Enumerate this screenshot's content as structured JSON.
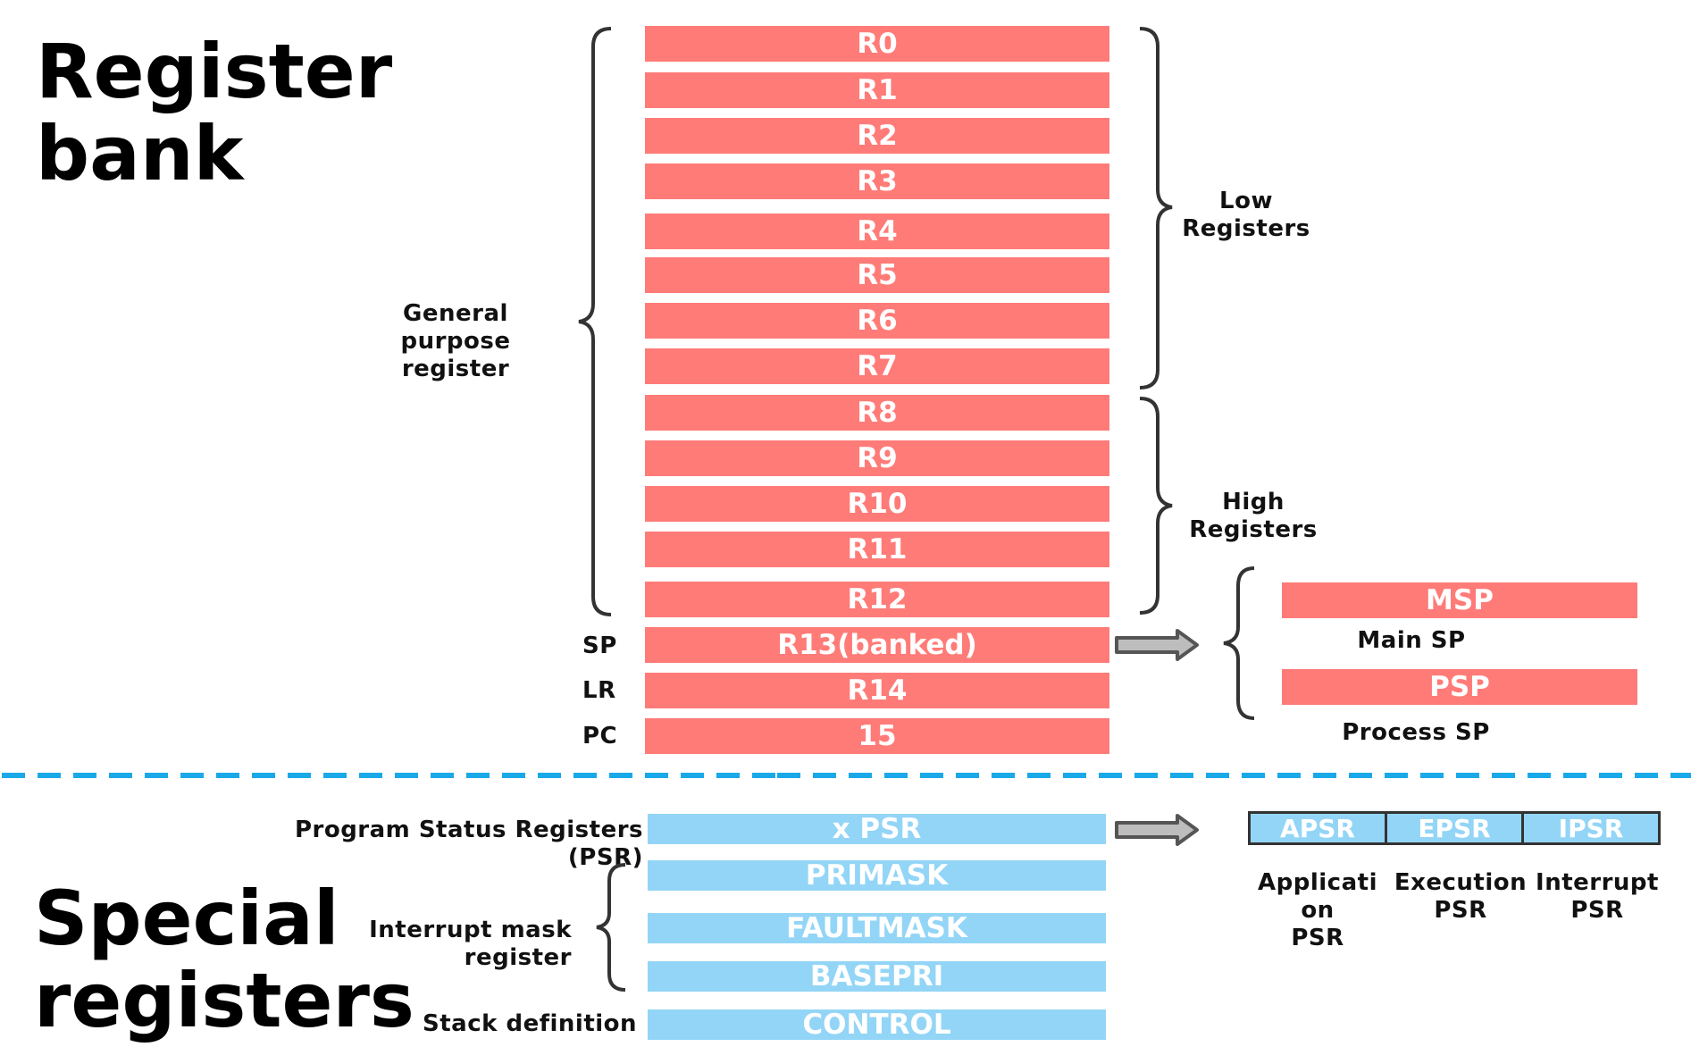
{
  "titles": {
    "register_bank": [
      "Register",
      "bank"
    ],
    "special_registers": [
      "Special",
      "registers"
    ]
  },
  "general_registers": [
    {
      "id": "r0",
      "label": "R0"
    },
    {
      "id": "r1",
      "label": "R1"
    },
    {
      "id": "r2",
      "label": "R2"
    },
    {
      "id": "r3",
      "label": "R3"
    },
    {
      "id": "r4",
      "label": "R4"
    },
    {
      "id": "r5",
      "label": "R5"
    },
    {
      "id": "r6",
      "label": "R6"
    },
    {
      "id": "r7",
      "label": "R7"
    },
    {
      "id": "r8",
      "label": "R8"
    },
    {
      "id": "r9",
      "label": "R9"
    },
    {
      "id": "r10",
      "label": "R10"
    },
    {
      "id": "r11",
      "label": "R11"
    },
    {
      "id": "r12",
      "label": "R12"
    },
    {
      "id": "r13",
      "label": "R13(banked)"
    },
    {
      "id": "r14",
      "label": "R14"
    },
    {
      "id": "r15",
      "label": "15"
    }
  ],
  "alias_labels": {
    "sp": "SP",
    "lr": "LR",
    "pc": "PC"
  },
  "group_labels": {
    "general_purpose": [
      "General purpose",
      "register"
    ],
    "low": [
      "Low",
      "Registers"
    ],
    "high": [
      "High",
      "Registers"
    ],
    "psr": "Program Status Registers (PSR)",
    "interrupt_mask": [
      "Interrupt mask",
      "register"
    ],
    "stack_definition": "Stack definition"
  },
  "stack_pointers": [
    {
      "id": "msp",
      "label": "MSP",
      "caption": "Main SP"
    },
    {
      "id": "psp",
      "label": "PSP",
      "caption": "Process SP"
    }
  ],
  "special_registers": [
    {
      "id": "xpsr",
      "label": "x PSR"
    },
    {
      "id": "primask",
      "label": "PRIMASK"
    },
    {
      "id": "faultmask",
      "label": "FAULTMASK"
    },
    {
      "id": "basepri",
      "label": "BASEPRI"
    },
    {
      "id": "control",
      "label": "CONTROL"
    }
  ],
  "psr_parts": [
    {
      "id": "apsr",
      "label": "APSR",
      "caption": [
        "Applicati",
        "on",
        "PSR"
      ]
    },
    {
      "id": "epsr",
      "label": "EPSR",
      "caption": [
        "Execution",
        "PSR"
      ]
    },
    {
      "id": "ipsr",
      "label": "IPSR",
      "caption": [
        "Interrupt",
        "PSR"
      ]
    }
  ],
  "colors": {
    "register_bank": "#ff7b78",
    "special": "#93d5f6",
    "divider": "#1aa9e8",
    "brace": "#333333",
    "arrow": "#555555"
  }
}
